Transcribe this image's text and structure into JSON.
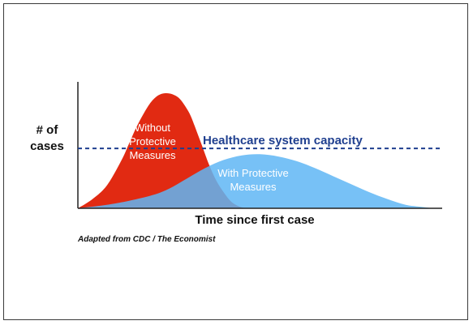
{
  "chart_data": {
    "type": "area",
    "title": "",
    "xlabel": "Time since first case",
    "ylabel": "# of cases",
    "ylabel_lines": [
      "# of",
      "cases"
    ],
    "x_domain": [
      0,
      100
    ],
    "y_domain": [
      0,
      100
    ],
    "grid": false,
    "threshold": {
      "name": "Healthcare system capacity",
      "value": 52,
      "color": "#1f3f8f"
    },
    "series": [
      {
        "name": "Without Protective Measures",
        "label_lines": [
          "Without",
          "Protective",
          "Measures"
        ],
        "color": "#e12a12",
        "x": [
          0,
          4,
          8,
          12,
          14,
          16,
          18,
          20,
          22,
          24,
          26,
          28,
          30,
          31,
          32,
          34,
          36,
          38,
          40,
          42,
          44,
          46
        ],
        "y": [
          0,
          8,
          20,
          42,
          56,
          70,
          82,
          92,
          98,
          100,
          99,
          95,
          86,
          80,
          72,
          55,
          38,
          24,
          14,
          6,
          2,
          0
        ]
      },
      {
        "name": "With Protective Measures",
        "label_lines": [
          "With Protective",
          "Measures"
        ],
        "color": "#5fb6f5",
        "x": [
          0,
          10,
          20,
          25,
          30,
          35,
          40,
          45,
          50,
          55,
          60,
          65,
          70,
          75,
          80,
          85,
          90,
          95,
          98
        ],
        "y": [
          0,
          4,
          11,
          17,
          26,
          35,
          42,
          46,
          47,
          45,
          41,
          35,
          28,
          21,
          14,
          8,
          3,
          1,
          0
        ]
      }
    ]
  },
  "source_note": "Adapted from CDC / The Economist"
}
